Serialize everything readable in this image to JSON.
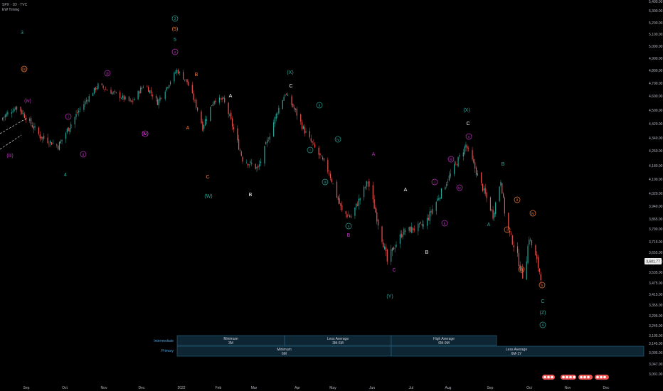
{
  "header": {
    "symbol_line": "SPX · 1D · TVC",
    "indicator_line": "EW Timing"
  },
  "price_axis": {
    "labels": [
      "5,400.00",
      "5,300.00",
      "5,200.00",
      "5,100.00",
      "5,000.00",
      "4,900.00",
      "4,800.00",
      "4,700.00",
      "4,600.00",
      "4,500.00",
      "4,420.00",
      "4,340.00",
      "4,260.00",
      "4,180.00",
      "4,100.00",
      "4,020.00",
      "3,940.00",
      "3,865.00",
      "3,790.00",
      "3,715.00",
      "3,655.00",
      "3,595.00",
      "3,535.00",
      "3,475.00",
      "3,415.00",
      "3,355.00",
      "3,295.00",
      "3,245.00",
      "3,195.00",
      "3,145.00",
      "3,095.00",
      "3,047.00",
      "3,001.00"
    ],
    "current_price": "3,601.77"
  },
  "time_axis": {
    "labels": [
      "Sep",
      "Oct",
      "Nov",
      "Dec",
      "2022",
      "Feb",
      "Mar",
      "Apr",
      "May",
      "Jun",
      "Jul",
      "Aug",
      "Sep",
      "Oct",
      "Nov",
      "Dec"
    ]
  },
  "timing_table": {
    "intermediate_label": "Intermediate",
    "primary_label": "Primary",
    "intermediate_cells": [
      {
        "l1": "Minimum",
        "l2": "3M"
      },
      {
        "l1": "Less Average",
        "l2": "3M-6M"
      },
      {
        "l1": "High Average",
        "l2": "6M-9M"
      }
    ],
    "primary_cells": [
      {
        "l1": "Minimum",
        "l2": "6M"
      },
      {
        "l1": "Less Average",
        "l2": "6M-1Y"
      }
    ]
  },
  "colors": {
    "up": "#26a69a",
    "down": "#ef5350",
    "teal": "#26a69a",
    "orange": "#f57c3c",
    "magenta": "#c030c0",
    "white": "#ffffff",
    "green_circle": "#26c281"
  },
  "wave_labels": [
    {
      "text": "3",
      "color": "teal"
    },
    {
      "text": "(v)",
      "color": "orange",
      "circled": true
    },
    {
      "text": "(iv)",
      "color": "magenta"
    },
    {
      "text": "(iii)",
      "color": "magenta"
    },
    {
      "text": "(iv)",
      "color": "magenta"
    },
    {
      "text": "4",
      "color": "teal"
    },
    {
      "text": "i",
      "color": "magenta",
      "circled": true
    },
    {
      "text": "ii",
      "color": "magenta",
      "circled": true
    },
    {
      "text": "iii",
      "color": "magenta",
      "circled": true
    },
    {
      "text": "iv",
      "color": "magenta",
      "circled": true
    },
    {
      "text": "3",
      "color": "teal",
      "circled": true
    },
    {
      "text": "(5)",
      "color": "orange"
    },
    {
      "text": "5",
      "color": "teal"
    },
    {
      "text": "v",
      "color": "magenta",
      "circled": true
    },
    {
      "text": "B",
      "color": "orange"
    },
    {
      "text": "A",
      "color": "orange"
    },
    {
      "text": "C",
      "color": "orange"
    },
    {
      "text": "(W)",
      "color": "teal"
    },
    {
      "text": "A",
      "color": "white"
    },
    {
      "text": "B",
      "color": "white"
    },
    {
      "text": "(X)",
      "color": "teal"
    },
    {
      "text": "C",
      "color": "white"
    },
    {
      "text": "ii",
      "color": "teal",
      "circled": true
    },
    {
      "text": "i",
      "color": "teal",
      "circled": true
    },
    {
      "text": "iv",
      "color": "teal",
      "circled": true
    },
    {
      "text": "iii",
      "color": "teal",
      "circled": true
    },
    {
      "text": "v",
      "color": "teal",
      "circled": true
    },
    {
      "text": "A",
      "color": "magenta"
    },
    {
      "text": "B",
      "color": "magenta"
    },
    {
      "text": "C",
      "color": "magenta"
    },
    {
      "text": "(Y)",
      "color": "teal"
    },
    {
      "text": "A",
      "color": "white"
    },
    {
      "text": "B",
      "color": "white"
    },
    {
      "text": "i",
      "color": "magenta",
      "circled": true
    },
    {
      "text": "ii",
      "color": "magenta",
      "circled": true
    },
    {
      "text": "iii",
      "color": "magenta",
      "circled": true
    },
    {
      "text": "iv",
      "color": "magenta",
      "circled": true
    },
    {
      "text": "(X)",
      "color": "teal"
    },
    {
      "text": "C",
      "color": "white"
    },
    {
      "text": "v",
      "color": "magenta",
      "circled": true
    },
    {
      "text": "A",
      "color": "teal"
    },
    {
      "text": "B",
      "color": "teal"
    },
    {
      "text": "ii",
      "color": "orange",
      "circled": true
    },
    {
      "text": "i",
      "color": "orange",
      "circled": true
    },
    {
      "text": "iv",
      "color": "orange",
      "circled": true
    },
    {
      "text": "iii",
      "color": "orange",
      "circled": true
    },
    {
      "text": "v",
      "color": "orange",
      "circled": true
    },
    {
      "text": "C",
      "color": "teal"
    },
    {
      "text": "(Z)",
      "color": "teal"
    },
    {
      "text": "4",
      "color": "teal",
      "circled": true
    }
  ],
  "chart_data": {
    "type": "candlestick",
    "title": "",
    "xlabel": "",
    "ylabel": "",
    "ylim": [
      3001,
      5450
    ],
    "x_start": "2021-08-20",
    "x_end": "2022-10-14",
    "anchors": [
      {
        "date": "2021-08-20",
        "close": 4450
      },
      {
        "date": "2021-09-02",
        "close": 4537
      },
      {
        "date": "2021-09-20",
        "close": 4358
      },
      {
        "date": "2021-10-04",
        "close": 4300
      },
      {
        "date": "2021-11-04",
        "close": 4700
      },
      {
        "date": "2021-11-30",
        "close": 4567
      },
      {
        "date": "2021-12-10",
        "close": 4712
      },
      {
        "date": "2021-12-20",
        "close": 4568
      },
      {
        "date": "2022-01-04",
        "close": 4818
      },
      {
        "date": "2022-01-12",
        "close": 4726
      },
      {
        "date": "2022-01-24",
        "close": 4410
      },
      {
        "date": "2022-02-02",
        "close": 4589
      },
      {
        "date": "2022-02-09",
        "close": 4587
      },
      {
        "date": "2022-02-24",
        "close": 4225
      },
      {
        "date": "2022-03-08",
        "close": 4170
      },
      {
        "date": "2022-03-29",
        "close": 4637
      },
      {
        "date": "2022-04-12",
        "close": 4400
      },
      {
        "date": "2022-05-02",
        "close": 4150
      },
      {
        "date": "2022-05-12",
        "close": 3930
      },
      {
        "date": "2022-05-19",
        "close": 3900
      },
      {
        "date": "2022-06-01",
        "close": 4100
      },
      {
        "date": "2022-06-16",
        "close": 3667
      },
      {
        "date": "2022-06-28",
        "close": 3820
      },
      {
        "date": "2022-07-15",
        "close": 3860
      },
      {
        "date": "2022-08-16",
        "close": 4305
      },
      {
        "date": "2022-09-06",
        "close": 3910
      },
      {
        "date": "2022-09-12",
        "close": 4110
      },
      {
        "date": "2022-09-16",
        "close": 3870
      },
      {
        "date": "2022-09-30",
        "close": 3585
      },
      {
        "date": "2022-10-04",
        "close": 3790
      },
      {
        "date": "2022-10-14",
        "close": 3583
      }
    ]
  }
}
